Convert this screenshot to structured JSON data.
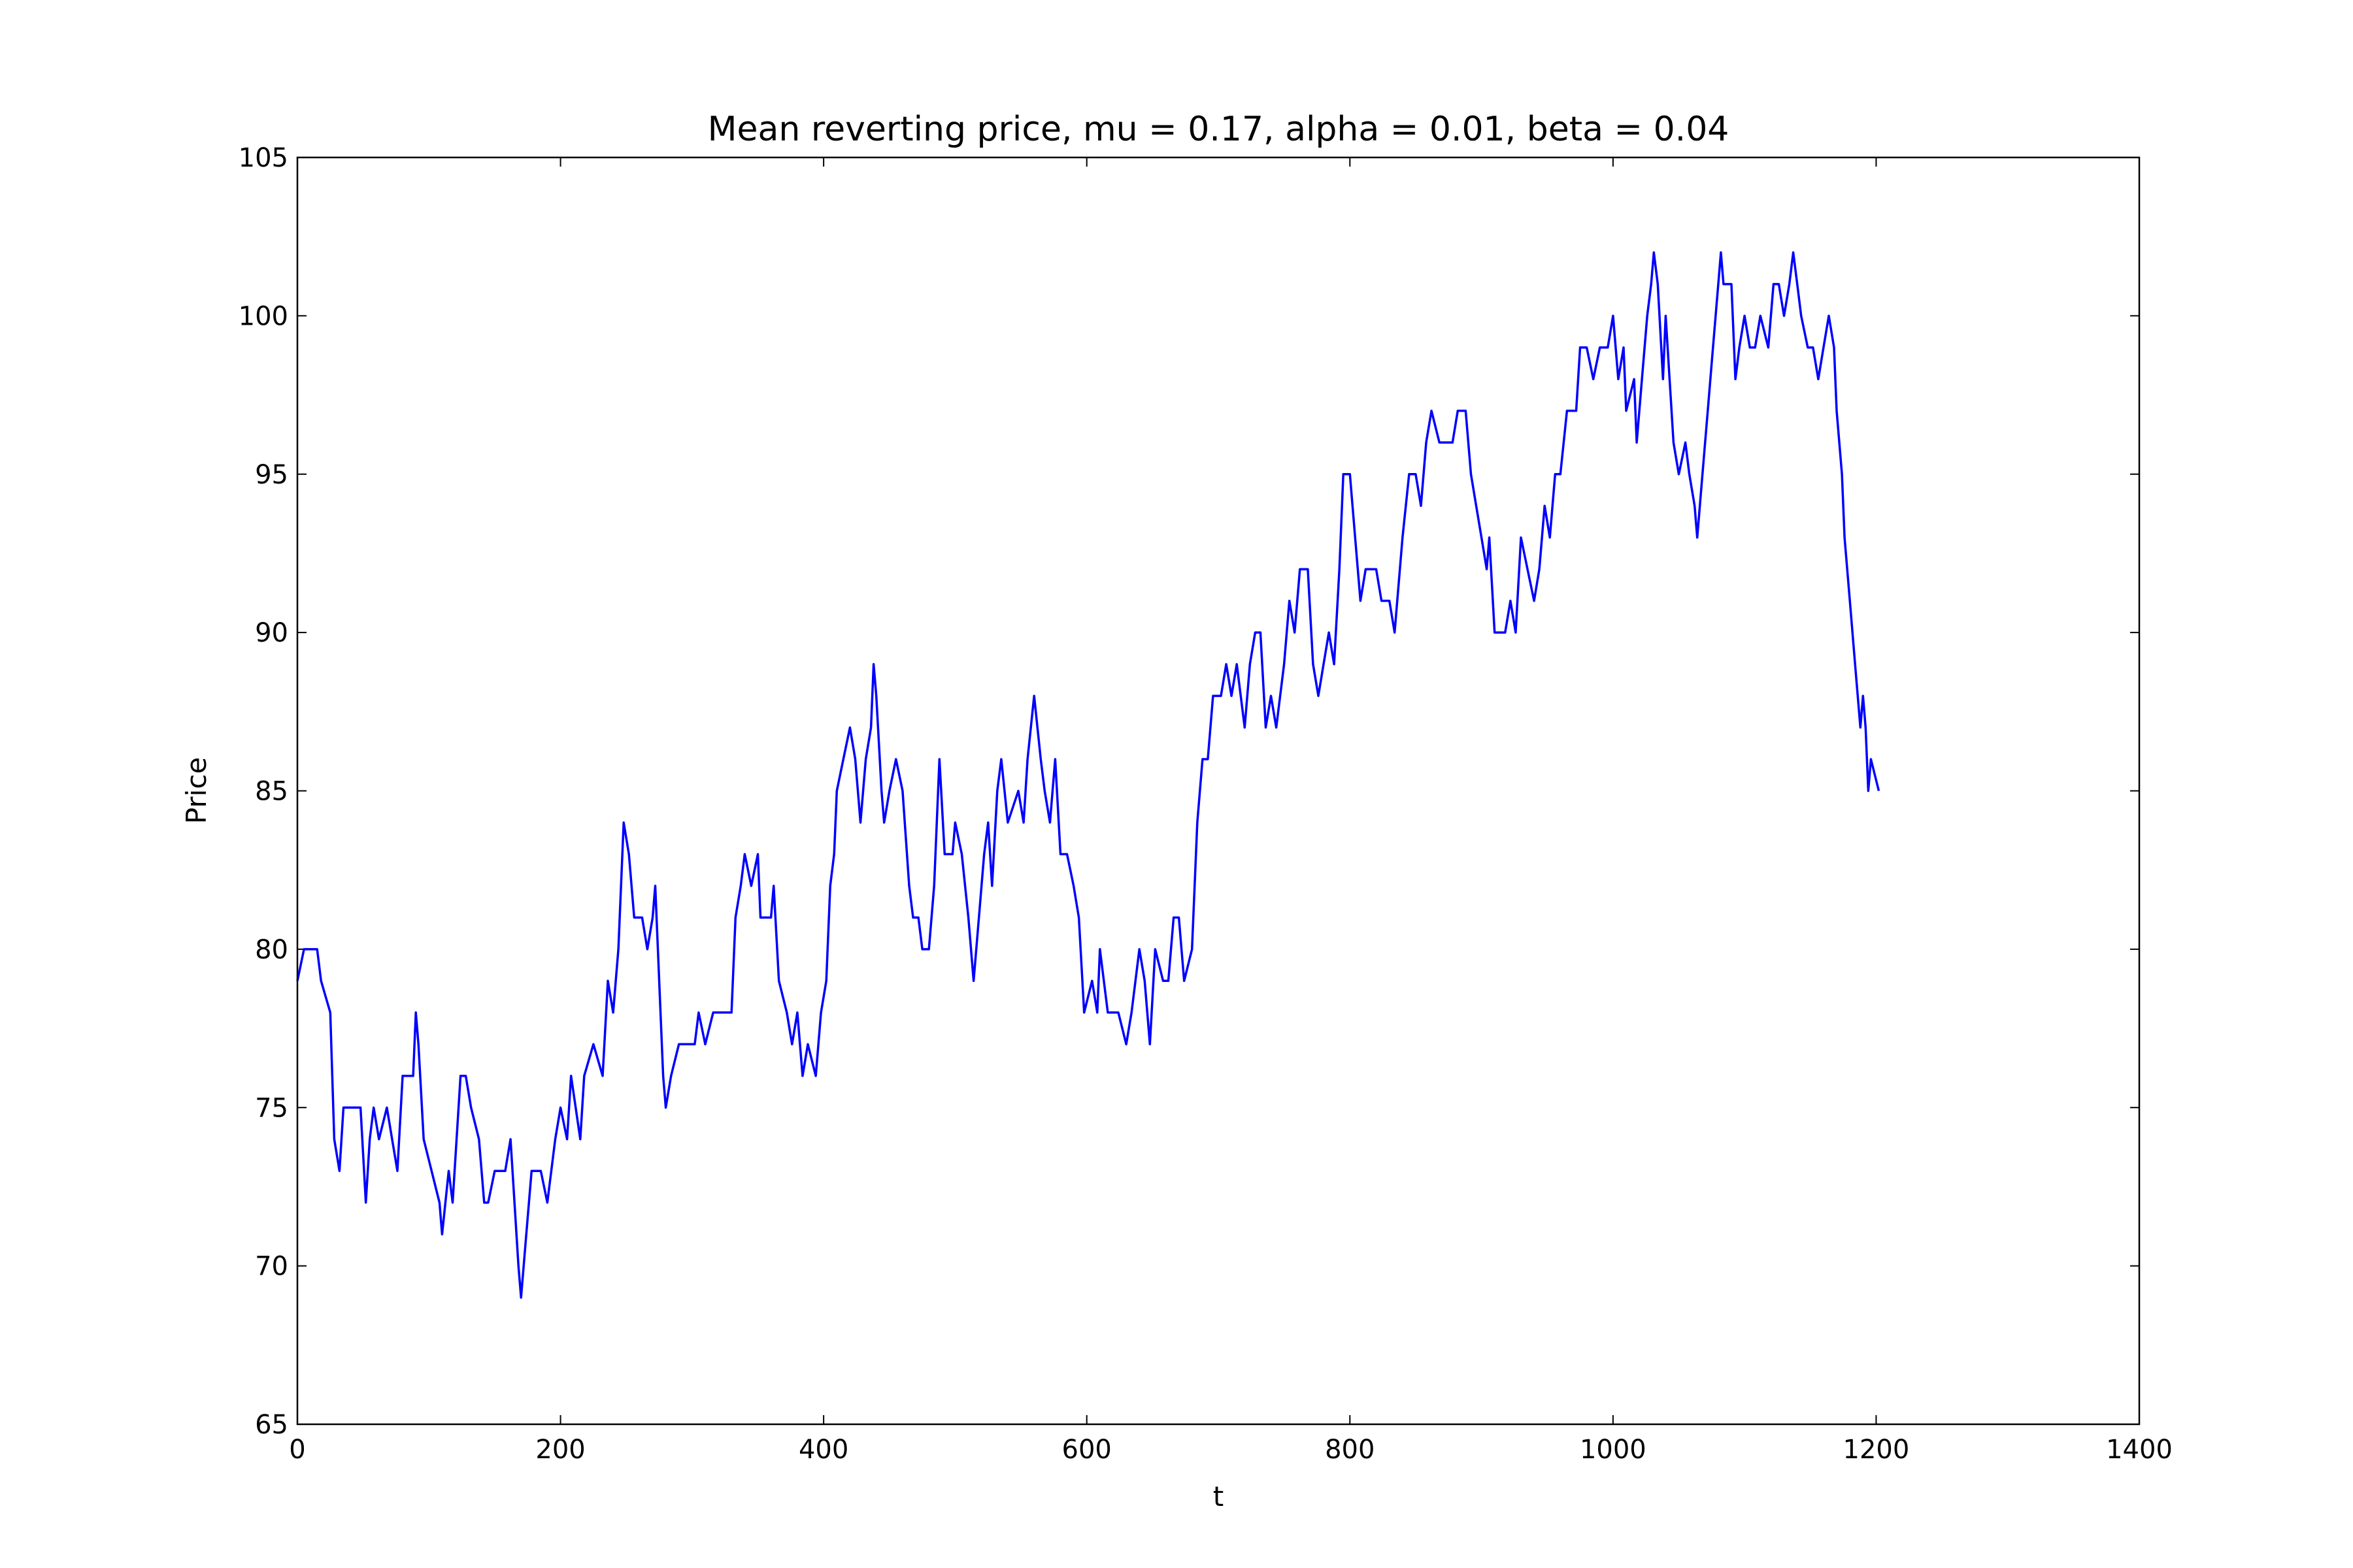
{
  "chart_data": {
    "type": "line",
    "title": "Mean reverting price, mu = 0.17, alpha = 0.01, beta = 0.04",
    "xlabel": "t",
    "ylabel": "Price",
    "xlim": [
      0,
      1400
    ],
    "ylim": [
      65,
      105
    ],
    "xticks": [
      0,
      200,
      400,
      600,
      800,
      1000,
      1200,
      1400
    ],
    "yticks": [
      65,
      70,
      75,
      80,
      85,
      90,
      95,
      100,
      105
    ],
    "grid": false,
    "series": [
      {
        "name": "price",
        "color": "#0000ff",
        "x": [
          0,
          5,
          15,
          18,
          25,
          28,
          32,
          35,
          48,
          52,
          55,
          58,
          62,
          68,
          72,
          76,
          80,
          88,
          90,
          92,
          96,
          102,
          108,
          110,
          115,
          118,
          124,
          128,
          132,
          138,
          142,
          145,
          150,
          158,
          162,
          168,
          170,
          174,
          178,
          185,
          190,
          196,
          200,
          205,
          208,
          215,
          218,
          225,
          232,
          236,
          240,
          244,
          248,
          252,
          256,
          262,
          266,
          270,
          272,
          278,
          280,
          284,
          290,
          302,
          305,
          310,
          316,
          330,
          333,
          337,
          340,
          345,
          350,
          352,
          360,
          362,
          366,
          372,
          376,
          380,
          384,
          388,
          394,
          398,
          402,
          405,
          408,
          410,
          415,
          420,
          424,
          428,
          432,
          436,
          438,
          440,
          444,
          446,
          450,
          455,
          460,
          465,
          468,
          472,
          475,
          480,
          484,
          488,
          492,
          498,
          500,
          505,
          510,
          514,
          518,
          522,
          525,
          528,
          532,
          535,
          540,
          548,
          552,
          555,
          560,
          565,
          568,
          572,
          576,
          580,
          585,
          590,
          594,
          598,
          604,
          608,
          610,
          616,
          624,
          630,
          634,
          640,
          644,
          648,
          652,
          658,
          662,
          666,
          670,
          674,
          680,
          684,
          688,
          692,
          696,
          702,
          706,
          710,
          714,
          720,
          724,
          728,
          732,
          736,
          740,
          744,
          750,
          754,
          758,
          762,
          768,
          772,
          776,
          780,
          784,
          788,
          792,
          795,
          800,
          804,
          808,
          812,
          820,
          824,
          830,
          834,
          840,
          845,
          850,
          854,
          858,
          862,
          868,
          878,
          882,
          888,
          892,
          896,
          900,
          904,
          906,
          910,
          918,
          922,
          926,
          930,
          935,
          940,
          944,
          948,
          952,
          956,
          960,
          965,
          972,
          975,
          980,
          985,
          990,
          996,
          1000,
          1004,
          1008,
          1010,
          1016,
          1018,
          1022,
          1026,
          1029,
          1031,
          1034,
          1038,
          1040,
          1046,
          1050,
          1055,
          1058,
          1062,
          1064,
          1068,
          1072,
          1076,
          1080,
          1082,
          1084,
          1090,
          1093,
          1096,
          1100,
          1104,
          1108,
          1112,
          1118,
          1122,
          1126,
          1130,
          1134,
          1137,
          1140,
          1143,
          1148,
          1152,
          1156,
          1160,
          1164,
          1168,
          1170,
          1174,
          1176,
          1180,
          1184,
          1188,
          1190,
          1192,
          1194,
          1196,
          1202
        ],
        "values": [
          79,
          80,
          80,
          79,
          78,
          74,
          73,
          75,
          75,
          72,
          74,
          75,
          74,
          75,
          74,
          73,
          76,
          76,
          78,
          77,
          74,
          73,
          72,
          71,
          73,
          72,
          76,
          76,
          75,
          74,
          72,
          72,
          73,
          73,
          74,
          70,
          69,
          71,
          73,
          73,
          72,
          74,
          75,
          74,
          76,
          74,
          76,
          77,
          76,
          79,
          78,
          80,
          84,
          83,
          81,
          81,
          80,
          81,
          82,
          76,
          75,
          76,
          77,
          77,
          78,
          77,
          78,
          78,
          81,
          82,
          83,
          82,
          83,
          81,
          81,
          82,
          79,
          78,
          77,
          78,
          76,
          77,
          76,
          78,
          79,
          82,
          83,
          85,
          86,
          87,
          86,
          84,
          86,
          87,
          89,
          88,
          85,
          84,
          85,
          86,
          85,
          82,
          81,
          81,
          80,
          80,
          82,
          86,
          83,
          83,
          84,
          83,
          81,
          79,
          81,
          83,
          84,
          82,
          85,
          86,
          84,
          85,
          84,
          86,
          88,
          86,
          85,
          84,
          86,
          83,
          83,
          82,
          81,
          78,
          79,
          78,
          80,
          78,
          78,
          77,
          78,
          80,
          79,
          77,
          80,
          79,
          79,
          81,
          81,
          79,
          80,
          84,
          86,
          86,
          88,
          88,
          89,
          88,
          89,
          87,
          89,
          90,
          90,
          87,
          88,
          87,
          89,
          91,
          90,
          92,
          92,
          89,
          88,
          89,
          90,
          89,
          92,
          95,
          95,
          93,
          91,
          92,
          92,
          91,
          91,
          90,
          93,
          95,
          95,
          94,
          96,
          97,
          96,
          96,
          97,
          97,
          95,
          94,
          93,
          92,
          93,
          90,
          90,
          91,
          90,
          93,
          92,
          91,
          92,
          94,
          93,
          95,
          95,
          97,
          97,
          99,
          99,
          98,
          99,
          99,
          100,
          98,
          99,
          97,
          98,
          96,
          98,
          100,
          101,
          102,
          101,
          98,
          100,
          96,
          95,
          96,
          95,
          94,
          93,
          95,
          97,
          99,
          101,
          102,
          101,
          101,
          98,
          99,
          100,
          99,
          99,
          100,
          99,
          101,
          101,
          100,
          101,
          102,
          101,
          100,
          99,
          99,
          98,
          99,
          100,
          99,
          97,
          95,
          93,
          91,
          89,
          87,
          88,
          87,
          85,
          86,
          85
        ]
      }
    ]
  }
}
